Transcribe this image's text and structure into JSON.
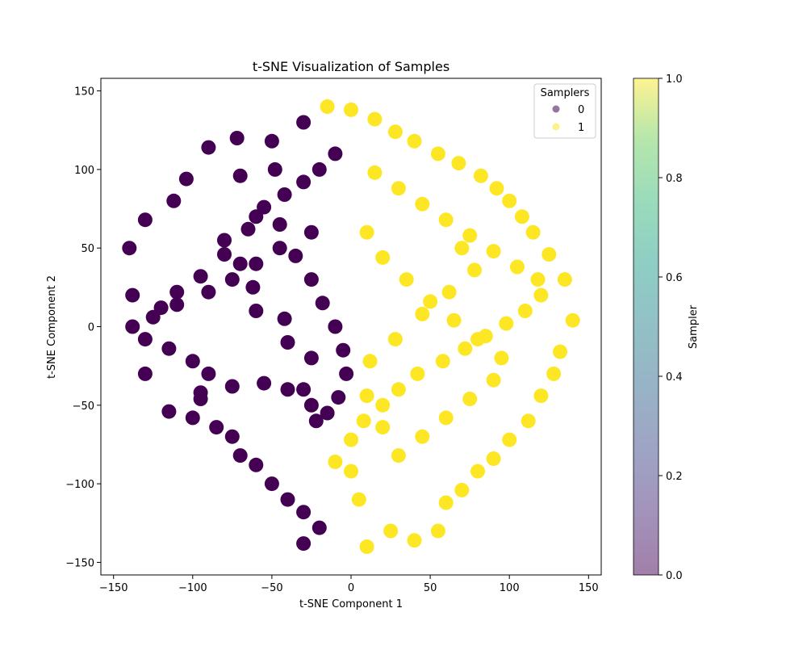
{
  "chart_data": {
    "type": "scatter",
    "title": "t-SNE Visualization of Samples",
    "xlabel": "t-SNE Component 1",
    "ylabel": "t-SNE Component 2",
    "xlim": [
      -158,
      158
    ],
    "ylim": [
      -158,
      158
    ],
    "xticks": [
      -150,
      -100,
      -50,
      0,
      50,
      100,
      150
    ],
    "xtick_labels": [
      "−150",
      "−100",
      "−50",
      "0",
      "50",
      "100",
      "150"
    ],
    "yticks": [
      -150,
      -100,
      -50,
      0,
      50,
      100,
      150
    ],
    "ytick_labels": [
      "−150",
      "−100",
      "−50",
      "0",
      "50",
      "100",
      "150"
    ],
    "grid": false,
    "legend": {
      "title": "Samplers",
      "position": "top-right",
      "entries": [
        "0",
        "1"
      ]
    },
    "colorbar": {
      "label": "Sampler",
      "range": [
        0.0,
        1.0
      ],
      "ticks": [
        0.0,
        0.2,
        0.4,
        0.6,
        0.8,
        1.0
      ],
      "tick_labels": [
        "0.0",
        "0.2",
        "0.4",
        "0.6",
        "0.8",
        "1.0"
      ],
      "colormap": "viridis"
    },
    "series": [
      {
        "name": "0",
        "color": "#440154",
        "x": [
          -30,
          -50,
          -48,
          -70,
          -72,
          -90,
          -104,
          -112,
          -130,
          -140,
          -138,
          -120,
          -110,
          -95,
          -80,
          -65,
          -55,
          -42,
          -30,
          -20,
          -10,
          -25,
          -45,
          -60,
          -75,
          -90,
          -110,
          -125,
          -138,
          -130,
          -115,
          -100,
          -90,
          -95,
          -100,
          -85,
          -75,
          -70,
          -60,
          -50,
          -40,
          -30,
          -20,
          -30,
          -22,
          -30,
          -25,
          -40,
          -42,
          -60,
          -62,
          -70,
          -80,
          -60,
          -45,
          -35,
          -25,
          -18,
          -10,
          -5,
          -3,
          -8,
          -15,
          -25,
          -40,
          -55,
          -75,
          -95,
          -115,
          -130
        ],
        "y": [
          130,
          118,
          100,
          96,
          120,
          114,
          94,
          80,
          68,
          50,
          20,
          12,
          22,
          32,
          46,
          62,
          76,
          84,
          92,
          100,
          110,
          60,
          50,
          40,
          30,
          22,
          14,
          6,
          0,
          -8,
          -14,
          -22,
          -30,
          -42,
          -58,
          -64,
          -70,
          -82,
          -88,
          -100,
          -110,
          -118,
          -128,
          -138,
          -60,
          -40,
          -20,
          -10,
          5,
          10,
          25,
          40,
          55,
          70,
          65,
          45,
          30,
          15,
          0,
          -15,
          -30,
          -45,
          -55,
          -50,
          -40,
          -36,
          -38,
          -46,
          -54,
          -30
        ]
      },
      {
        "name": "1",
        "color": "#fde725",
        "x": [
          -15,
          0,
          15,
          28,
          40,
          55,
          68,
          82,
          92,
          100,
          108,
          115,
          125,
          135,
          140,
          132,
          128,
          120,
          112,
          100,
          90,
          80,
          70,
          60,
          55,
          40,
          25,
          10,
          5,
          0,
          -10,
          0,
          8,
          20,
          30,
          42,
          58,
          72,
          85,
          98,
          110,
          120,
          118,
          105,
          90,
          75,
          60,
          45,
          30,
          15,
          10,
          20,
          35,
          50,
          65,
          80,
          95,
          90,
          75,
          60,
          45,
          30,
          20,
          10,
          12,
          28,
          45,
          62,
          78,
          70
        ],
        "y": [
          140,
          138,
          132,
          124,
          118,
          110,
          104,
          96,
          88,
          80,
          70,
          60,
          46,
          30,
          4,
          -16,
          -30,
          -44,
          -60,
          -72,
          -84,
          -92,
          -104,
          -112,
          -130,
          -136,
          -130,
          -140,
          -110,
          -92,
          -86,
          -72,
          -60,
          -50,
          -40,
          -30,
          -22,
          -14,
          -6,
          2,
          10,
          20,
          30,
          38,
          48,
          58,
          68,
          78,
          88,
          98,
          60,
          44,
          30,
          16,
          4,
          -8,
          -20,
          -34,
          -46,
          -58,
          -70,
          -82,
          -64,
          -44,
          -22,
          -8,
          8,
          22,
          36,
          50
        ]
      }
    ]
  }
}
